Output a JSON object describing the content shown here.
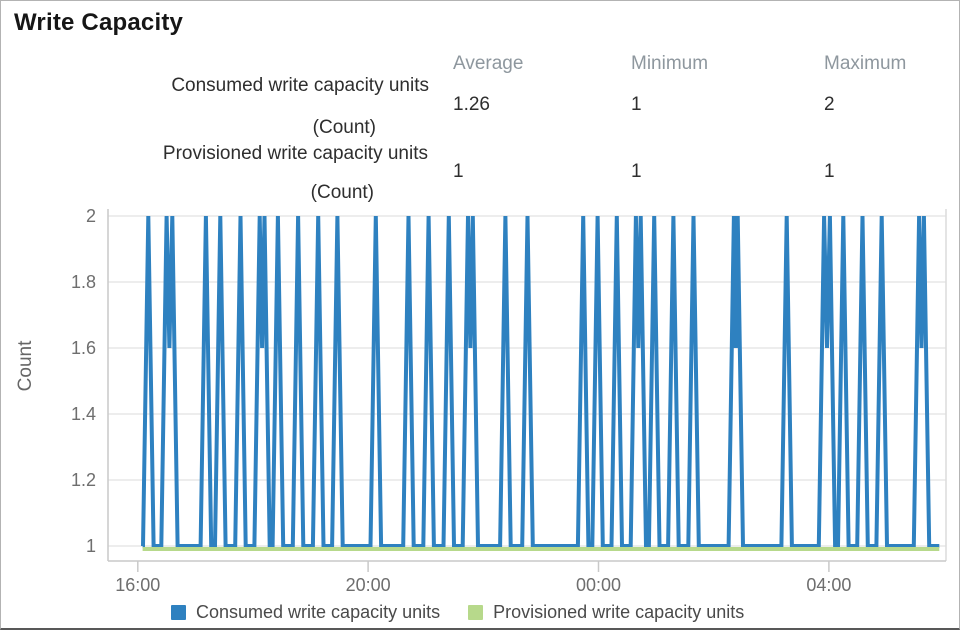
{
  "title": "Write Capacity",
  "stats": {
    "headers": {
      "average": "Average",
      "minimum": "Minimum",
      "maximum": "Maximum"
    },
    "rows": [
      {
        "label": "Consumed write capacity units",
        "unit": "(Count)",
        "average": "1.26",
        "minimum": "1",
        "maximum": "2"
      },
      {
        "label": "Provisioned write capacity units",
        "unit": "(Count)",
        "average": "1",
        "minimum": "1",
        "maximum": "1"
      }
    ]
  },
  "legend": {
    "items": [
      {
        "label": "Consumed write capacity units",
        "color": "#2e81c0"
      },
      {
        "label": "Provisioned write capacity units",
        "color": "#b7d98b"
      }
    ]
  },
  "chart_data": {
    "type": "line",
    "title": "Write Capacity",
    "ylabel": "Count",
    "ylim": [
      1,
      2
    ],
    "yticks": [
      1,
      1.2,
      1.4,
      1.6,
      1.8,
      2
    ],
    "xticks": [
      "16:00",
      "20:00",
      "00:00",
      "04:00"
    ],
    "x_window": [
      "15:29",
      "06:02"
    ],
    "data_window": [
      "16:05",
      "05:55"
    ],
    "grid": true,
    "legend_position": "bottom",
    "series": [
      {
        "name": "Consumed write capacity units",
        "color": "#2e81c0",
        "baseline_value": 1,
        "spike_value": 2,
        "pair_dip_value": 1.6,
        "stats": {
          "average": 1.26,
          "minimum": 1,
          "maximum": 2
        },
        "spike_times": [
          "16:11",
          "16:30",
          "16:36",
          "17:11",
          "17:26",
          "17:47",
          "18:07",
          "18:12",
          "18:26",
          "18:47",
          "19:08",
          "19:28",
          "20:08",
          "20:42",
          "21:03",
          "21:24",
          "21:44",
          "21:49",
          "22:23",
          "22:46",
          "23:44",
          "23:59",
          "00:19",
          "00:39",
          "00:44",
          "00:58",
          "01:18",
          "01:39",
          "02:21",
          "02:25",
          "03:16",
          "03:55",
          "04:01",
          "04:15",
          "04:35",
          "04:55",
          "05:34",
          "05:39"
        ]
      },
      {
        "name": "Provisioned write capacity units",
        "color": "#b7d98b",
        "constant_value": 1,
        "stats": {
          "average": 1,
          "minimum": 1,
          "maximum": 1
        }
      }
    ]
  }
}
